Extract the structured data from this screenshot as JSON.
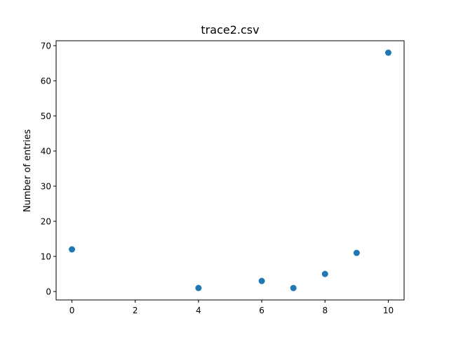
{
  "chart_data": {
    "type": "scatter",
    "title": "trace2.csv",
    "xlabel": "",
    "ylabel": "Number of entries",
    "xlim": [
      -0.5,
      10.5
    ],
    "ylim": [
      -2.4,
      71.4
    ],
    "xticks": [
      0,
      2,
      4,
      6,
      8,
      10
    ],
    "yticks": [
      0,
      10,
      20,
      30,
      40,
      50,
      60,
      70
    ],
    "grid": false,
    "series": [
      {
        "color": "#1f77b4",
        "points": [
          {
            "x": 0,
            "y": 12
          },
          {
            "x": 4,
            "y": 1
          },
          {
            "x": 6,
            "y": 3
          },
          {
            "x": 7,
            "y": 1
          },
          {
            "x": 8,
            "y": 5
          },
          {
            "x": 9,
            "y": 11
          },
          {
            "x": 10,
            "y": 68
          }
        ]
      }
    ]
  }
}
